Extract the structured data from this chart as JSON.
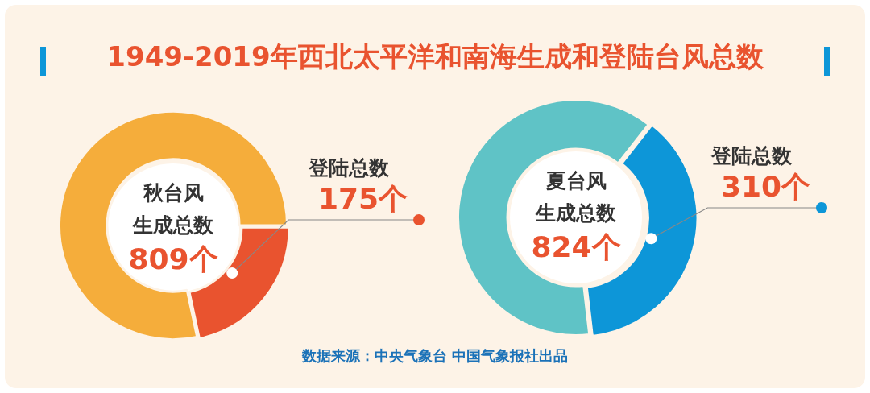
{
  "chart_data": [
    {
      "type": "donut",
      "title": "1949-2019年西北太平洋和南海生成和登陆台风总数",
      "subtitle": "秋台风生成总数809个",
      "categories": [
        "登陆总数",
        null
      ],
      "values": [
        175,
        634
      ],
      "colors": [
        "#e9532f",
        "#f5ad3b"
      ],
      "value_labels": [
        "175个",
        null
      ],
      "annotations": [
        "数据来源：中央气象台  中国气象报社出品"
      ]
    },
    {
      "type": "donut",
      "subtitle": "夏台风生成总数824个",
      "categories": [
        "登陆总数",
        null
      ],
      "values": [
        310,
        514
      ],
      "colors": [
        "#0d96d8",
        "#5fc3c6"
      ],
      "value_labels": [
        "310个",
        null
      ]
    }
  ]
}
